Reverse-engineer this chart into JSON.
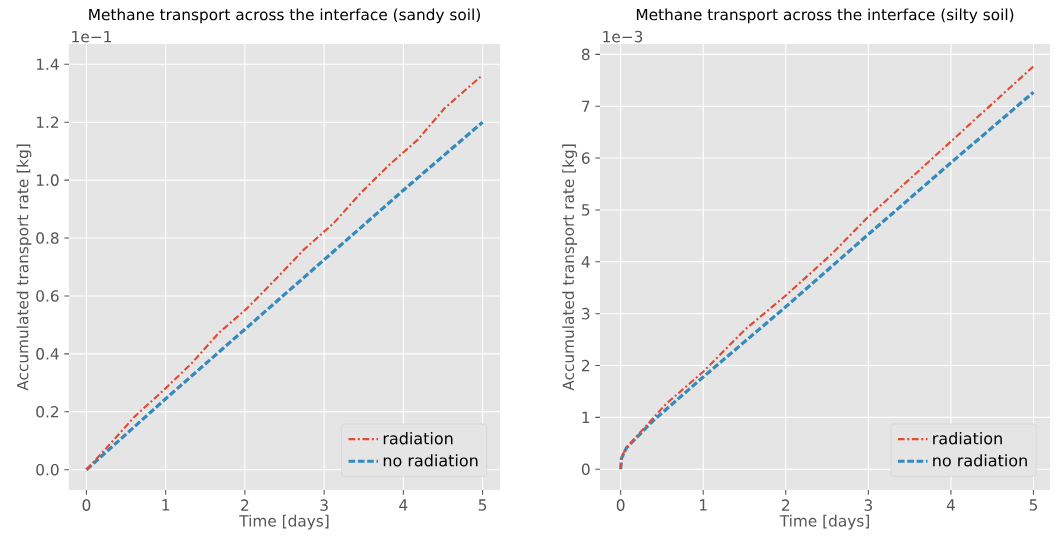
{
  "chart_data": [
    {
      "type": "line",
      "title": "Methane transport across the interface (sandy soil)",
      "xlabel": "Time [days]",
      "ylabel": "Accumulated transport rate [kg]",
      "annotations": [
        "1e−1"
      ],
      "xlim": [
        -0.22,
        5.22
      ],
      "ylim": [
        -0.07,
        1.47
      ],
      "xticks": [
        0,
        1,
        2,
        3,
        4,
        5
      ],
      "yticks": [
        {
          "value": 0,
          "label": "0.0"
        },
        {
          "value": 0.2,
          "label": "0.2"
        },
        {
          "value": 0.4,
          "label": "0.4"
        },
        {
          "value": 0.6,
          "label": "0.6"
        },
        {
          "value": 0.8,
          "label": "0.8"
        },
        {
          "value": 1.0,
          "label": "1.0"
        },
        {
          "value": 1.2,
          "label": "1.2"
        },
        {
          "value": 1.4,
          "label": "1.4"
        }
      ],
      "grid": true,
      "legend": "bottom right",
      "series": [
        {
          "name": "radiation",
          "color": "#e24a33",
          "line_style": "dashdot",
          "x": [
            0,
            0.31,
            0.61,
            0.98,
            1.33,
            1.67,
            2.03,
            2.4,
            2.74,
            3.12,
            3.46,
            3.82,
            4.18,
            4.52,
            5.0
          ],
          "values": [
            0,
            0.092,
            0.184,
            0.276,
            0.368,
            0.472,
            0.558,
            0.661,
            0.759,
            0.851,
            0.955,
            1.052,
            1.139,
            1.248,
            1.363
          ]
        },
        {
          "name": "no radiation",
          "color": "#348abd",
          "line_style": "dashed",
          "x": [
            0,
            1,
            2,
            3,
            4,
            5
          ],
          "values": [
            0,
            0.245,
            0.485,
            0.725,
            0.965,
            1.2
          ]
        }
      ]
    },
    {
      "type": "line",
      "title": "Methane transport across the interface (silty soil)",
      "xlabel": "Time [days]",
      "ylabel": "Accumulated transport rate [kg]",
      "annotations": [
        "1e−3"
      ],
      "xlim": [
        -0.25,
        5.2
      ],
      "ylim": [
        -0.4,
        8.2
      ],
      "xticks": [
        0,
        1,
        2,
        3,
        4,
        5
      ],
      "yticks": [
        0,
        1,
        2,
        3,
        4,
        5,
        6,
        7,
        8
      ],
      "grid": true,
      "legend": "bottom right",
      "series": [
        {
          "name": "radiation",
          "color": "#e24a33",
          "line_style": "dashdot",
          "x": [
            0,
            0.02,
            0.07,
            0.23,
            0.55,
            1.0,
            1.51,
            2.0,
            2.55,
            3.0,
            3.67,
            4.0,
            4.35,
            5.0
          ],
          "values": [
            0,
            0.27,
            0.41,
            0.7,
            1.26,
            1.88,
            2.7,
            3.35,
            4.14,
            4.87,
            5.84,
            6.32,
            6.83,
            7.77
          ]
        },
        {
          "name": "no radiation",
          "color": "#348abd",
          "line_style": "dashed",
          "x": [
            0,
            0.01,
            0.07,
            0.39,
            1.0,
            1.99,
            3.0,
            4.0,
            5.0
          ],
          "values": [
            0,
            0.21,
            0.41,
            0.93,
            1.78,
            3.12,
            4.53,
            5.91,
            7.27
          ]
        }
      ]
    }
  ]
}
